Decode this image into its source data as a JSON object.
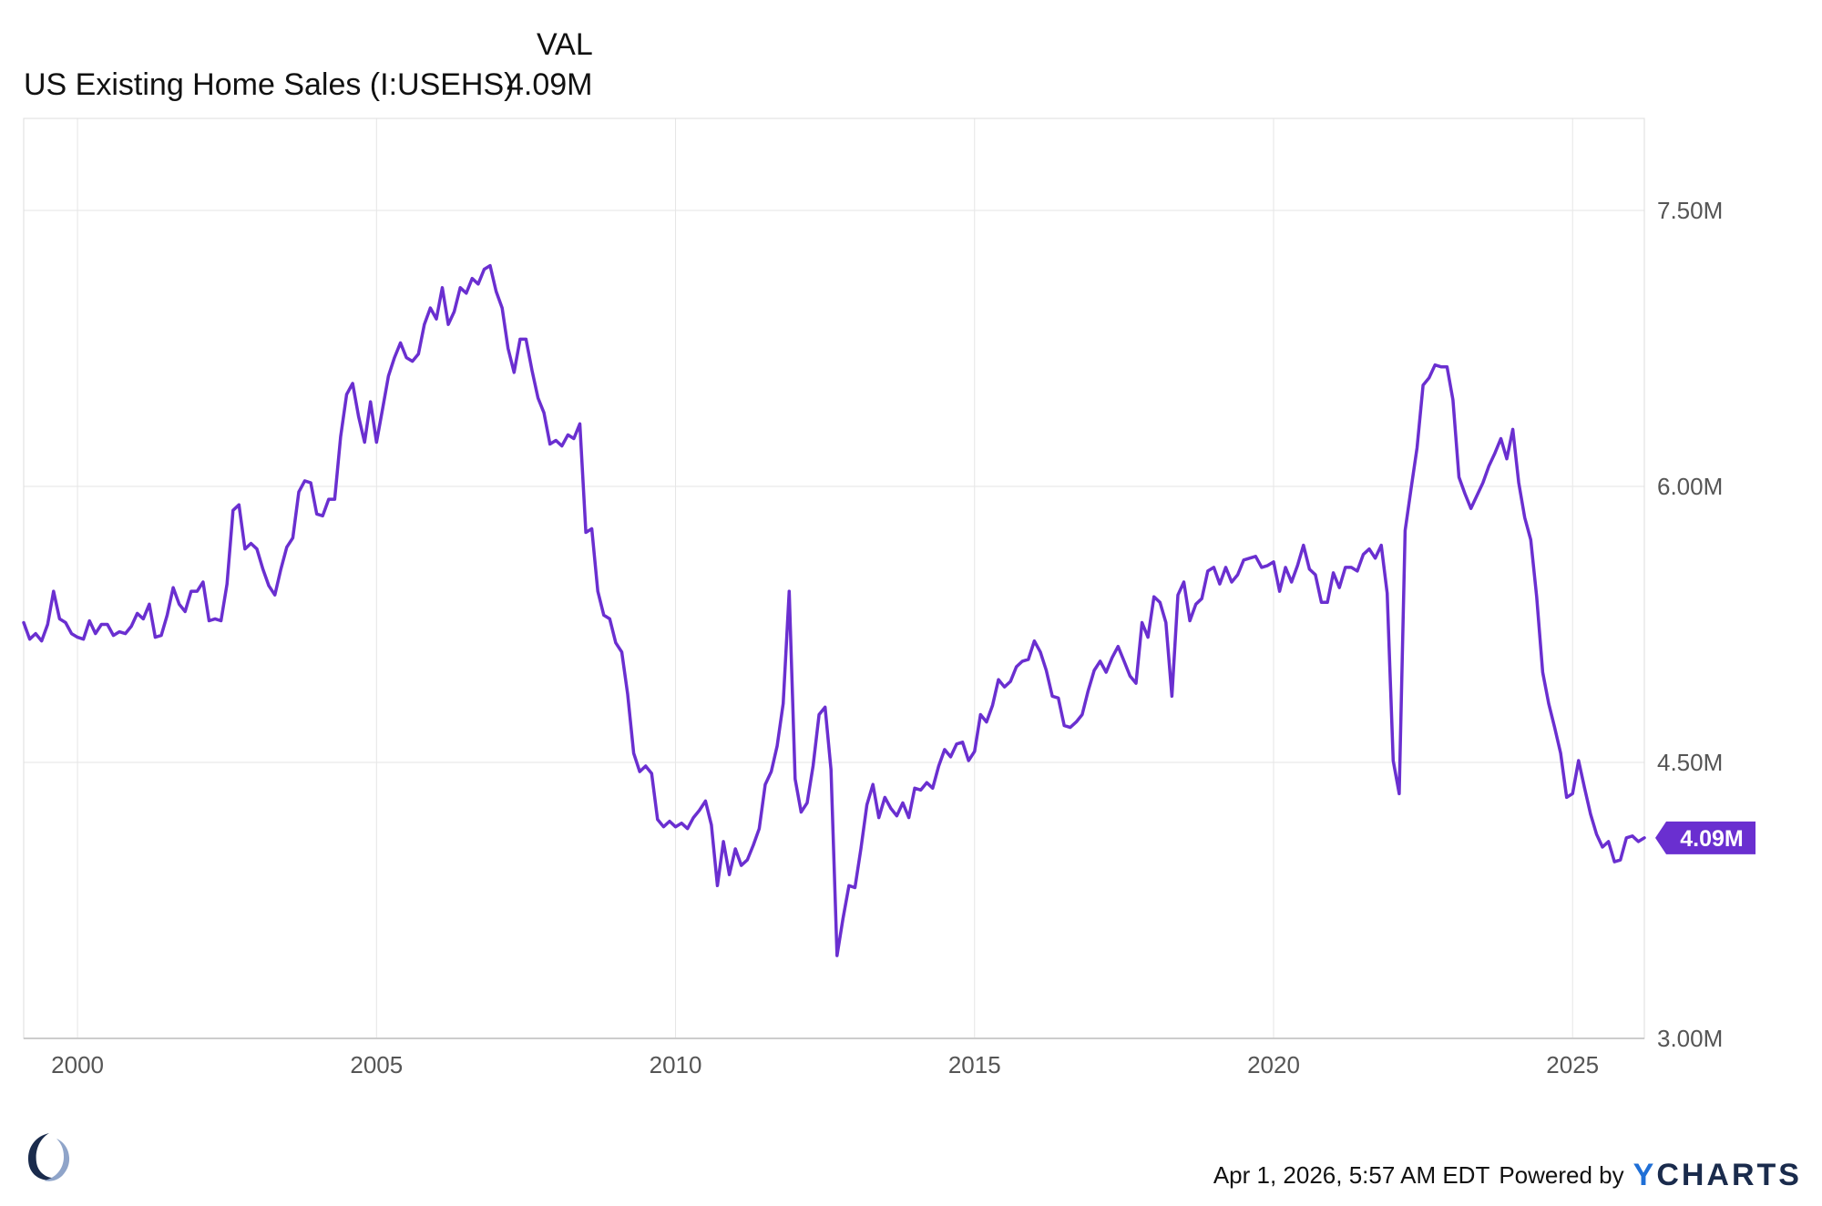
{
  "legend": {
    "value_header": "VAL",
    "series_name": "US Existing Home Sales (I:USEHS)",
    "series_value": "4.09M"
  },
  "footer": {
    "timestamp": "Apr 1, 2026, 5:57 AM EDT",
    "powered_by": "Powered by",
    "brand_y": "Y",
    "brand_rest": "CHARTS"
  },
  "colors": {
    "line": "#6a2fd0",
    "grid": "#e6e6e6",
    "axis": "#cccccc"
  },
  "chart_data": {
    "type": "line",
    "title": "",
    "xlabel": "",
    "ylabel": "",
    "xlim": [
      1999.1,
      2026.2
    ],
    "ylim": [
      3.0,
      8.0
    ],
    "grid": true,
    "legend_position": "top-left",
    "x_ticks": [
      2000,
      2005,
      2010,
      2015,
      2020,
      2025
    ],
    "x_tick_labels": [
      "2000",
      "2005",
      "2010",
      "2015",
      "2020",
      "2025"
    ],
    "y_ticks": [
      3.0,
      4.5,
      6.0,
      7.5
    ],
    "y_tick_labels": [
      "3.00M",
      "4.50M",
      "6.00M",
      "7.50M"
    ],
    "last_value_label": "4.09M",
    "last_value": 4.09,
    "series": [
      {
        "name": "US Existing Home Sales (I:USEHS)",
        "unit": "M",
        "points": [
          [
            1999.1,
            5.26
          ],
          [
            1999.2,
            5.17
          ],
          [
            1999.3,
            5.2
          ],
          [
            1999.4,
            5.16
          ],
          [
            1999.5,
            5.25
          ],
          [
            1999.6,
            5.43
          ],
          [
            1999.7,
            5.28
          ],
          [
            1999.8,
            5.26
          ],
          [
            1999.9,
            5.2
          ],
          [
            2000.0,
            5.18
          ],
          [
            2000.1,
            5.17
          ],
          [
            2000.2,
            5.27
          ],
          [
            2000.3,
            5.2
          ],
          [
            2000.4,
            5.25
          ],
          [
            2000.5,
            5.25
          ],
          [
            2000.6,
            5.19
          ],
          [
            2000.7,
            5.21
          ],
          [
            2000.8,
            5.2
          ],
          [
            2000.9,
            5.24
          ],
          [
            2001.0,
            5.31
          ],
          [
            2001.1,
            5.28
          ],
          [
            2001.2,
            5.36
          ],
          [
            2001.3,
            5.18
          ],
          [
            2001.4,
            5.19
          ],
          [
            2001.5,
            5.3
          ],
          [
            2001.6,
            5.45
          ],
          [
            2001.7,
            5.36
          ],
          [
            2001.8,
            5.32
          ],
          [
            2001.9,
            5.43
          ],
          [
            2002.0,
            5.43
          ],
          [
            2002.1,
            5.48
          ],
          [
            2002.2,
            5.27
          ],
          [
            2002.3,
            5.28
          ],
          [
            2002.4,
            5.27
          ],
          [
            2002.5,
            5.47
          ],
          [
            2002.6,
            5.87
          ],
          [
            2002.7,
            5.9
          ],
          [
            2002.8,
            5.66
          ],
          [
            2002.9,
            5.69
          ],
          [
            2003.0,
            5.66
          ],
          [
            2003.1,
            5.55
          ],
          [
            2003.2,
            5.46
          ],
          [
            2003.3,
            5.41
          ],
          [
            2003.4,
            5.55
          ],
          [
            2003.5,
            5.67
          ],
          [
            2003.6,
            5.72
          ],
          [
            2003.7,
            5.97
          ],
          [
            2003.8,
            6.03
          ],
          [
            2003.9,
            6.02
          ],
          [
            2004.0,
            5.85
          ],
          [
            2004.1,
            5.84
          ],
          [
            2004.2,
            5.93
          ],
          [
            2004.3,
            5.93
          ],
          [
            2004.4,
            6.27
          ],
          [
            2004.5,
            6.5
          ],
          [
            2004.6,
            6.56
          ],
          [
            2004.7,
            6.38
          ],
          [
            2004.8,
            6.24
          ],
          [
            2004.9,
            6.46
          ],
          [
            2005.0,
            6.24
          ],
          [
            2005.1,
            6.42
          ],
          [
            2005.2,
            6.6
          ],
          [
            2005.3,
            6.7
          ],
          [
            2005.4,
            6.78
          ],
          [
            2005.5,
            6.7
          ],
          [
            2005.6,
            6.68
          ],
          [
            2005.7,
            6.72
          ],
          [
            2005.8,
            6.88
          ],
          [
            2005.9,
            6.97
          ],
          [
            2006.0,
            6.91
          ],
          [
            2006.1,
            7.08
          ],
          [
            2006.2,
            6.88
          ],
          [
            2006.3,
            6.95
          ],
          [
            2006.4,
            7.08
          ],
          [
            2006.5,
            7.05
          ],
          [
            2006.6,
            7.13
          ],
          [
            2006.7,
            7.1
          ],
          [
            2006.8,
            7.18
          ],
          [
            2006.9,
            7.2
          ],
          [
            2007.0,
            7.06
          ],
          [
            2007.1,
            6.97
          ],
          [
            2007.2,
            6.75
          ],
          [
            2007.3,
            6.62
          ],
          [
            2007.4,
            6.8
          ],
          [
            2007.5,
            6.8
          ],
          [
            2007.6,
            6.63
          ],
          [
            2007.7,
            6.48
          ],
          [
            2007.8,
            6.4
          ],
          [
            2007.9,
            6.23
          ],
          [
            2008.0,
            6.25
          ],
          [
            2008.1,
            6.22
          ],
          [
            2008.2,
            6.28
          ],
          [
            2008.3,
            6.26
          ],
          [
            2008.4,
            6.34
          ],
          [
            2008.5,
            5.75
          ],
          [
            2008.6,
            5.77
          ],
          [
            2008.7,
            5.43
          ],
          [
            2008.8,
            5.3
          ],
          [
            2008.9,
            5.28
          ],
          [
            2009.0,
            5.15
          ],
          [
            2009.1,
            5.1
          ],
          [
            2009.2,
            4.87
          ],
          [
            2009.3,
            4.55
          ],
          [
            2009.4,
            4.45
          ],
          [
            2009.5,
            4.48
          ],
          [
            2009.6,
            4.44
          ],
          [
            2009.7,
            4.19
          ],
          [
            2009.8,
            4.15
          ],
          [
            2009.9,
            4.18
          ],
          [
            2010.0,
            4.15
          ],
          [
            2010.1,
            4.17
          ],
          [
            2010.2,
            4.14
          ],
          [
            2010.3,
            4.2
          ],
          [
            2010.4,
            4.24
          ],
          [
            2010.5,
            4.29
          ],
          [
            2010.6,
            4.16
          ],
          [
            2010.7,
            3.83
          ],
          [
            2010.8,
            4.07
          ],
          [
            2010.9,
            3.89
          ],
          [
            2011.0,
            4.03
          ],
          [
            2011.1,
            3.94
          ],
          [
            2011.2,
            3.97
          ],
          [
            2011.3,
            4.05
          ],
          [
            2011.4,
            4.14
          ],
          [
            2011.5,
            4.38
          ],
          [
            2011.6,
            4.45
          ],
          [
            2011.7,
            4.59
          ],
          [
            2011.8,
            4.82
          ],
          [
            2011.9,
            5.43
          ],
          [
            2012.0,
            4.41
          ],
          [
            2012.1,
            4.23
          ],
          [
            2012.2,
            4.28
          ],
          [
            2012.3,
            4.48
          ],
          [
            2012.4,
            4.76
          ],
          [
            2012.5,
            4.8
          ],
          [
            2012.6,
            4.46
          ],
          [
            2012.7,
            3.45
          ],
          [
            2012.8,
            3.65
          ],
          [
            2012.9,
            3.83
          ],
          [
            2013.0,
            3.82
          ],
          [
            2013.1,
            4.03
          ],
          [
            2013.2,
            4.27
          ],
          [
            2013.3,
            4.38
          ],
          [
            2013.4,
            4.2
          ],
          [
            2013.5,
            4.31
          ],
          [
            2013.6,
            4.25
          ],
          [
            2013.7,
            4.21
          ],
          [
            2013.8,
            4.28
          ],
          [
            2013.9,
            4.2
          ],
          [
            2014.0,
            4.36
          ],
          [
            2014.1,
            4.35
          ],
          [
            2014.2,
            4.39
          ],
          [
            2014.3,
            4.36
          ],
          [
            2014.4,
            4.48
          ],
          [
            2014.5,
            4.57
          ],
          [
            2014.6,
            4.53
          ],
          [
            2014.7,
            4.6
          ],
          [
            2014.8,
            4.61
          ],
          [
            2014.9,
            4.51
          ],
          [
            2015.0,
            4.56
          ],
          [
            2015.1,
            4.76
          ],
          [
            2015.2,
            4.72
          ],
          [
            2015.3,
            4.81
          ],
          [
            2015.4,
            4.95
          ],
          [
            2015.5,
            4.91
          ],
          [
            2015.6,
            4.94
          ],
          [
            2015.7,
            5.02
          ],
          [
            2015.8,
            5.05
          ],
          [
            2015.9,
            5.06
          ],
          [
            2016.0,
            5.16
          ],
          [
            2016.1,
            5.1
          ],
          [
            2016.2,
            5.0
          ],
          [
            2016.3,
            4.86
          ],
          [
            2016.4,
            4.85
          ],
          [
            2016.5,
            4.7
          ],
          [
            2016.6,
            4.69
          ],
          [
            2016.7,
            4.72
          ],
          [
            2016.8,
            4.76
          ],
          [
            2016.9,
            4.89
          ],
          [
            2017.0,
            5.0
          ],
          [
            2017.1,
            5.05
          ],
          [
            2017.2,
            4.99
          ],
          [
            2017.3,
            5.07
          ],
          [
            2017.4,
            5.13
          ],
          [
            2017.5,
            5.05
          ],
          [
            2017.6,
            4.97
          ],
          [
            2017.7,
            4.93
          ],
          [
            2017.8,
            5.26
          ],
          [
            2017.9,
            5.18
          ],
          [
            2018.0,
            5.4
          ],
          [
            2018.1,
            5.37
          ],
          [
            2018.2,
            5.26
          ],
          [
            2018.3,
            4.86
          ],
          [
            2018.4,
            5.41
          ],
          [
            2018.5,
            5.48
          ],
          [
            2018.6,
            5.27
          ],
          [
            2018.7,
            5.36
          ],
          [
            2018.8,
            5.39
          ],
          [
            2018.9,
            5.54
          ],
          [
            2019.0,
            5.56
          ],
          [
            2019.1,
            5.47
          ],
          [
            2019.2,
            5.56
          ],
          [
            2019.3,
            5.48
          ],
          [
            2019.4,
            5.52
          ],
          [
            2019.5,
            5.6
          ],
          [
            2019.6,
            5.61
          ],
          [
            2019.7,
            5.62
          ],
          [
            2019.8,
            5.56
          ],
          [
            2019.9,
            5.57
          ],
          [
            2020.0,
            5.59
          ],
          [
            2020.1,
            5.43
          ],
          [
            2020.2,
            5.56
          ],
          [
            2020.3,
            5.48
          ],
          [
            2020.4,
            5.57
          ],
          [
            2020.5,
            5.68
          ],
          [
            2020.6,
            5.55
          ],
          [
            2020.7,
            5.52
          ],
          [
            2020.8,
            5.37
          ],
          [
            2020.9,
            5.37
          ],
          [
            2021.0,
            5.53
          ],
          [
            2021.1,
            5.45
          ],
          [
            2021.2,
            5.56
          ],
          [
            2021.3,
            5.56
          ],
          [
            2021.4,
            5.54
          ],
          [
            2021.5,
            5.63
          ],
          [
            2021.6,
            5.66
          ],
          [
            2021.7,
            5.61
          ],
          [
            2021.8,
            5.68
          ],
          [
            2021.9,
            5.42
          ],
          [
            2022.0,
            4.51
          ],
          [
            2022.1,
            4.33
          ],
          [
            2022.2,
            5.76
          ],
          [
            2022.3,
            5.99
          ],
          [
            2022.4,
            6.21
          ],
          [
            2022.5,
            6.55
          ],
          [
            2022.6,
            6.59
          ],
          [
            2022.7,
            6.66
          ],
          [
            2022.8,
            6.65
          ],
          [
            2022.9,
            6.65
          ],
          [
            2023.0,
            6.47
          ],
          [
            2023.1,
            6.05
          ],
          [
            2023.2,
            5.96
          ],
          [
            2023.3,
            5.88
          ],
          [
            2023.4,
            5.95
          ],
          [
            2023.5,
            6.02
          ],
          [
            2023.6,
            6.11
          ],
          [
            2023.7,
            6.18
          ],
          [
            2023.8,
            6.26
          ],
          [
            2023.9,
            6.15
          ],
          [
            2024.0,
            6.31
          ],
          [
            2024.1,
            6.02
          ],
          [
            2024.2,
            5.83
          ],
          [
            2024.3,
            5.71
          ],
          [
            2024.4,
            5.4
          ],
          [
            2024.5,
            4.99
          ],
          [
            2024.6,
            4.82
          ],
          [
            2024.7,
            4.69
          ],
          [
            2024.8,
            4.55
          ],
          [
            2024.9,
            4.31
          ],
          [
            2025.0,
            4.33
          ],
          [
            2025.1,
            4.51
          ],
          [
            2025.2,
            4.36
          ],
          [
            2025.3,
            4.22
          ],
          [
            2025.4,
            4.11
          ],
          [
            2025.5,
            4.04
          ],
          [
            2025.6,
            4.07
          ],
          [
            2025.7,
            3.96
          ],
          [
            2025.8,
            3.97
          ],
          [
            2025.9,
            4.09
          ],
          [
            2026.0,
            4.1
          ],
          [
            2026.1,
            4.07
          ],
          [
            2026.2,
            4.09
          ]
        ]
      }
    ]
  }
}
